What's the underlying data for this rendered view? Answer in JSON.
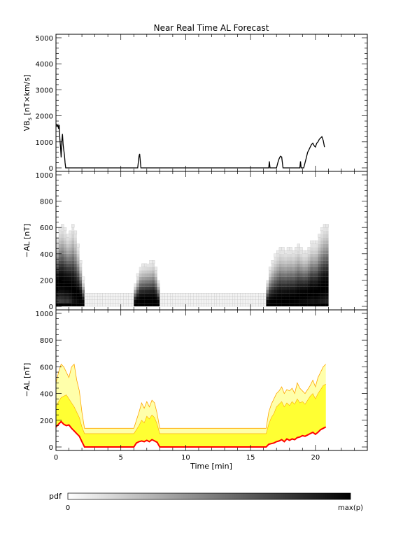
{
  "chart_data": [
    {
      "type": "line",
      "title": "Near Real Time AL Forecast",
      "ylabel_main": "VB",
      "ylabel_sub": "s",
      "ylabel_rest": " [nT×km/s]",
      "xlim": [
        0,
        24
      ],
      "ylim": [
        0,
        5000
      ],
      "yticks": [
        0,
        1000,
        2000,
        3000,
        4000,
        5000
      ],
      "series": [
        {
          "color": "#000000",
          "points": [
            [
              0.0,
              1700
            ],
            [
              0.1,
              1600
            ],
            [
              0.15,
              1650
            ],
            [
              0.2,
              1500
            ],
            [
              0.25,
              1650
            ],
            [
              0.3,
              1100
            ],
            [
              0.35,
              800
            ],
            [
              0.4,
              400
            ],
            [
              0.45,
              1000
            ],
            [
              0.5,
              1300
            ],
            [
              0.55,
              900
            ],
            [
              0.6,
              700
            ],
            [
              0.65,
              500
            ],
            [
              0.7,
              200
            ],
            [
              0.75,
              0
            ],
            [
              6.3,
              0
            ],
            [
              6.4,
              450
            ],
            [
              6.45,
              540
            ],
            [
              6.55,
              0
            ],
            [
              16.4,
              0
            ],
            [
              16.45,
              250
            ],
            [
              16.5,
              0
            ],
            [
              17.0,
              0
            ],
            [
              17.1,
              200
            ],
            [
              17.2,
              350
            ],
            [
              17.3,
              450
            ],
            [
              17.4,
              420
            ],
            [
              17.5,
              0
            ],
            [
              18.8,
              0
            ],
            [
              18.85,
              250
            ],
            [
              18.9,
              0
            ],
            [
              19.1,
              0
            ],
            [
              19.2,
              200
            ],
            [
              19.3,
              400
            ],
            [
              19.4,
              600
            ],
            [
              19.5,
              700
            ],
            [
              19.6,
              800
            ],
            [
              19.7,
              900
            ],
            [
              19.8,
              950
            ],
            [
              19.9,
              850
            ],
            [
              20.0,
              800
            ],
            [
              20.1,
              950
            ],
            [
              20.2,
              1000
            ],
            [
              20.3,
              1100
            ],
            [
              20.4,
              1150
            ],
            [
              20.5,
              1200
            ],
            [
              20.6,
              1050
            ],
            [
              20.7,
              800
            ]
          ]
        }
      ]
    },
    {
      "type": "heatmap",
      "ylabel": "−AL [nT]",
      "xlim": [
        0,
        24
      ],
      "ylim": [
        0,
        1000
      ],
      "yticks": [
        0,
        200,
        400,
        600,
        800,
        1000
      ],
      "x_extent": [
        0,
        20.8
      ],
      "cell_width": 0.2,
      "cell_height": 25
    },
    {
      "type": "area",
      "ylabel": "−AL [nT]",
      "xlabel": "Time [min]",
      "xlim": [
        0,
        24
      ],
      "ylim": [
        0,
        1000
      ],
      "xticks": [
        0,
        5,
        10,
        15,
        20
      ],
      "yticks": [
        0,
        200,
        400,
        600,
        800,
        1000
      ],
      "x": [
        0.0,
        0.2,
        0.4,
        0.6,
        0.8,
        1.0,
        1.2,
        1.4,
        1.6,
        1.8,
        2.0,
        2.2,
        6.0,
        6.2,
        6.4,
        6.6,
        6.8,
        7.0,
        7.2,
        7.4,
        7.6,
        7.8,
        8.0,
        16.2,
        16.4,
        16.6,
        16.8,
        17.0,
        17.2,
        17.4,
        17.6,
        17.8,
        18.0,
        18.2,
        18.4,
        18.6,
        18.8,
        19.0,
        19.2,
        19.4,
        19.6,
        19.8,
        20.0,
        20.2,
        20.4,
        20.6,
        20.8
      ],
      "median": [
        150,
        170,
        190,
        170,
        160,
        165,
        140,
        120,
        100,
        80,
        40,
        0,
        0,
        30,
        40,
        45,
        40,
        50,
        40,
        55,
        45,
        35,
        0,
        0,
        20,
        25,
        30,
        40,
        45,
        55,
        40,
        60,
        50,
        60,
        55,
        70,
        75,
        85,
        80,
        90,
        100,
        110,
        95,
        110,
        130,
        140,
        150
      ],
      "band_lower": [
        180,
        200,
        220,
        210,
        200,
        205,
        180,
        160,
        140,
        120,
        90,
        80,
        80,
        90,
        100,
        110,
        100,
        120,
        110,
        125,
        115,
        100,
        80,
        80,
        95,
        100,
        110,
        120,
        130,
        140,
        120,
        150,
        130,
        150,
        140,
        160,
        165,
        180,
        170,
        185,
        200,
        210,
        195,
        210,
        230,
        240,
        250
      ],
      "band_upper": [
        300,
        340,
        370,
        380,
        390,
        360,
        330,
        300,
        260,
        220,
        150,
        100,
        100,
        130,
        160,
        200,
        180,
        230,
        210,
        240,
        220,
        170,
        100,
        100,
        170,
        220,
        250,
        300,
        320,
        340,
        300,
        330,
        310,
        340,
        320,
        360,
        330,
        340,
        320,
        350,
        380,
        400,
        360,
        400,
        430,
        460,
        470
      ],
      "outer_upper": [
        480,
        560,
        620,
        600,
        560,
        520,
        600,
        620,
        500,
        420,
        260,
        140,
        140,
        200,
        260,
        330,
        290,
        340,
        300,
        350,
        330,
        250,
        140,
        140,
        260,
        320,
        360,
        400,
        420,
        450,
        400,
        430,
        420,
        440,
        400,
        480,
        440,
        420,
        400,
        430,
        460,
        500,
        450,
        520,
        560,
        600,
        620
      ],
      "colors": {
        "median": "#ff0000",
        "band": "#ffff33",
        "outer": "#ffffaa",
        "edge": "#ffa500"
      }
    }
  ],
  "colorbar": {
    "label": "pdf",
    "min_label": "0",
    "max_label": "max(p)"
  }
}
